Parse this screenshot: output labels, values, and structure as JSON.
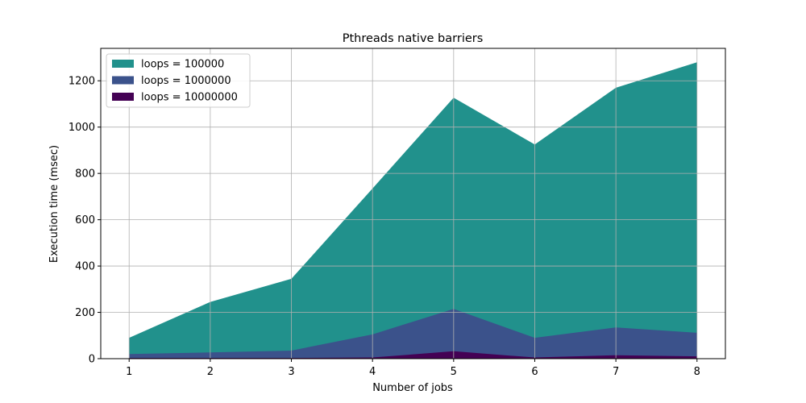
{
  "chart_data": {
    "type": "area",
    "title": "Pthreads native barriers",
    "xlabel": "Number of jobs",
    "ylabel": "Execution time (msec)",
    "x": [
      1,
      2,
      3,
      4,
      5,
      6,
      7,
      8
    ],
    "xlim": [
      0.65,
      8.35
    ],
    "ylim": [
      0,
      1340
    ],
    "xticks": [
      1,
      2,
      3,
      4,
      5,
      6,
      7,
      8
    ],
    "yticks": [
      0,
      200,
      400,
      600,
      800,
      1000,
      1200
    ],
    "grid": true,
    "legend_position": "top-left",
    "series": [
      {
        "name": "loops = 100000",
        "color": "#21918c",
        "values": [
          90,
          245,
          345,
          735,
          1127,
          925,
          1170,
          1280
        ]
      },
      {
        "name": "loops = 1000000",
        "color": "#3b528b",
        "values": [
          20,
          27,
          35,
          105,
          215,
          90,
          135,
          112
        ]
      },
      {
        "name": "loops = 10000000",
        "color": "#440154",
        "values": [
          3,
          3,
          3,
          5,
          32,
          5,
          15,
          10
        ]
      }
    ]
  }
}
